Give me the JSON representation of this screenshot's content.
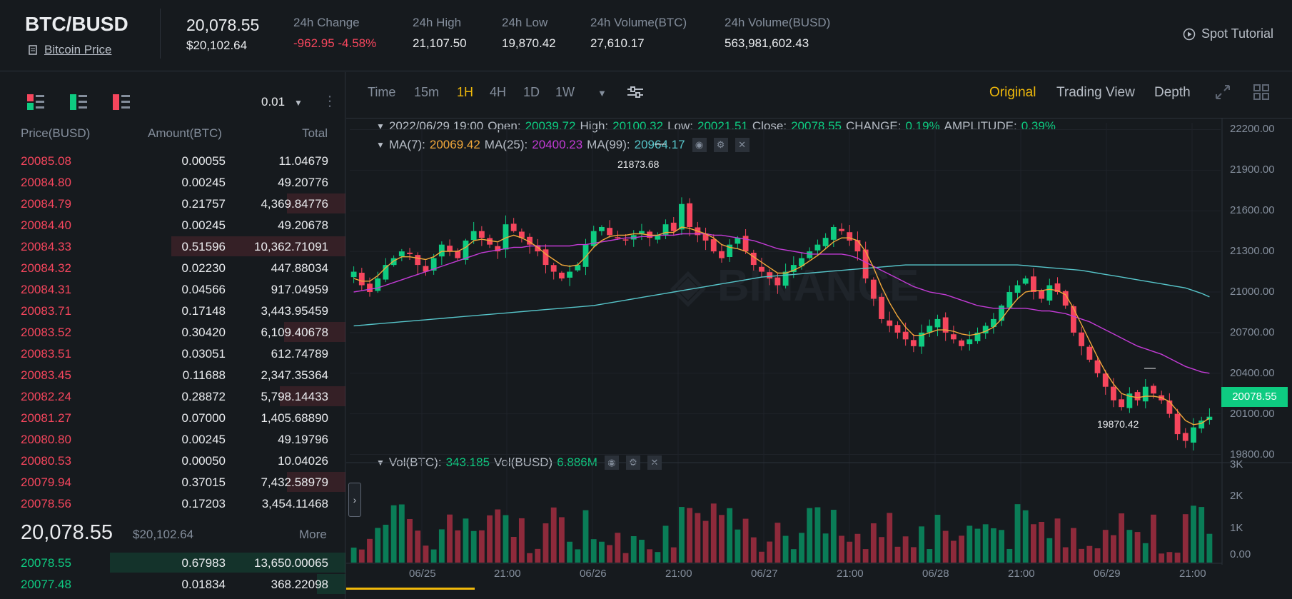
{
  "header": {
    "pair": "BTC/BUSD",
    "coin_link": "Bitcoin Price",
    "last_price": "20,078.55",
    "last_price_usd": "$20,102.64",
    "stats": [
      {
        "label": "24h Change",
        "value": "-962.95 -4.58%",
        "color": "#f6465d"
      },
      {
        "label": "24h High",
        "value": "21,107.50"
      },
      {
        "label": "24h Low",
        "value": "19,870.42"
      },
      {
        "label": "24h Volume(BTC)",
        "value": "27,610.17"
      },
      {
        "label": "24h Volume(BUSD)",
        "value": "563,981,602.43"
      }
    ],
    "tutorial": "Spot Tutorial"
  },
  "orderbook": {
    "tick_size": "0.01",
    "headers": {
      "price": "Price(BUSD)",
      "amount": "Amount(BTC)",
      "total": "Total"
    },
    "asks": [
      {
        "price": "20085.08",
        "amount": "0.00055",
        "total": "11.04679",
        "depth": 0
      },
      {
        "price": "20084.80",
        "amount": "0.00245",
        "total": "49.20776",
        "depth": 0
      },
      {
        "price": "20084.79",
        "amount": "0.21757",
        "total": "4,369.84776",
        "depth": 0.25
      },
      {
        "price": "20084.40",
        "amount": "0.00245",
        "total": "49.20678",
        "depth": 0
      },
      {
        "price": "20084.33",
        "amount": "0.51596",
        "total": "10,362.71091",
        "depth": 0.74
      },
      {
        "price": "20084.32",
        "amount": "0.02230",
        "total": "447.88034",
        "depth": 0
      },
      {
        "price": "20084.31",
        "amount": "0.04566",
        "total": "917.04959",
        "depth": 0
      },
      {
        "price": "20083.71",
        "amount": "0.17148",
        "total": "3,443.95459",
        "depth": 0
      },
      {
        "price": "20083.52",
        "amount": "0.30420",
        "total": "6,109.40678",
        "depth": 0.26
      },
      {
        "price": "20083.51",
        "amount": "0.03051",
        "total": "612.74789",
        "depth": 0
      },
      {
        "price": "20083.45",
        "amount": "0.11688",
        "total": "2,347.35364",
        "depth": 0
      },
      {
        "price": "20082.24",
        "amount": "0.28872",
        "total": "5,798.14433",
        "depth": 0.28
      },
      {
        "price": "20081.27",
        "amount": "0.07000",
        "total": "1,405.68890",
        "depth": 0
      },
      {
        "price": "20080.80",
        "amount": "0.00245",
        "total": "49.19796",
        "depth": 0
      },
      {
        "price": "20080.53",
        "amount": "0.00050",
        "total": "10.04026",
        "depth": 0
      },
      {
        "price": "20079.94",
        "amount": "0.37015",
        "total": "7,432.58979",
        "depth": 0.25
      },
      {
        "price": "20078.56",
        "amount": "0.17203",
        "total": "3,454.11468",
        "depth": 0
      }
    ],
    "mid_price": "20,078.55",
    "mid_price_usd": "$20,102.64",
    "more": "More",
    "bids": [
      {
        "price": "20078.55",
        "amount": "0.67983",
        "total": "13,650.00065",
        "depth": 1
      },
      {
        "price": "20077.48",
        "amount": "0.01834",
        "total": "368.22098",
        "depth": 0.12
      }
    ]
  },
  "chart_toolbar": {
    "timeframes": [
      "Time",
      "15m",
      "1H",
      "4H",
      "1D",
      "1W"
    ],
    "active_timeframe": "1H",
    "views": [
      "Original",
      "Trading View",
      "Depth"
    ],
    "active_view": "Original"
  },
  "ohlc_info": {
    "date": "2022/06/29 19:00",
    "open_label": "Open:",
    "open": "20039.72",
    "high_label": "High:",
    "high": "20100.32",
    "low_label": "Low:",
    "low": "20021.51",
    "close_label": "Close:",
    "close": "20078.55",
    "change_label": "CHANGE:",
    "change": "0.19%",
    "amp_label": "AMPLITUDE:",
    "amp": "0.39%"
  },
  "ma_info": {
    "ma7_label": "MA(7):",
    "ma7": "20069.42",
    "ma25_label": "MA(25):",
    "ma25": "20400.23",
    "ma99_label": "MA(99):",
    "ma99": "20964.17"
  },
  "vol_info": {
    "vol_btc_label": "Vol(BTC):",
    "vol_btc": "343.185",
    "vol_busd_label": "Vol(BUSD)",
    "vol_busd": "6.886M"
  },
  "current_price_tag": "20078.55",
  "high_marker": "21873.68",
  "low_marker": "19870.42",
  "colors": {
    "up": "#0ecb81",
    "down": "#f6465d",
    "accent": "#f0b90b",
    "ma7": "#f0a73a",
    "ma25": "#c33bd6",
    "ma99": "#56c4c9"
  },
  "chart_data": {
    "type": "candlestick",
    "y_ticks": [
      "22200.00",
      "21900.00",
      "21600.00",
      "21300.00",
      "21000.00",
      "20700.00",
      "20400.00",
      "20100.00",
      "19800.00"
    ],
    "ylim": [
      19750,
      22250
    ],
    "x_ticks": [
      "06/25",
      "21:00",
      "06/26",
      "21:00",
      "06/27",
      "21:00",
      "06/28",
      "21:00",
      "06/29",
      "21:00"
    ],
    "vol_ticks": [
      "3K",
      "2K",
      "1K",
      "0.00"
    ],
    "close_series": [
      21150,
      21050,
      21000,
      21100,
      21200,
      21250,
      21300,
      21280,
      21200,
      21150,
      21250,
      21350,
      21300,
      21250,
      21380,
      21450,
      21400,
      21350,
      21300,
      21500,
      21450,
      21400,
      21350,
      21300,
      21200,
      21150,
      21100,
      21150,
      21200,
      21350,
      21450,
      21480,
      21420,
      21400,
      21380,
      21420,
      21450,
      21400,
      21420,
      21500,
      21450,
      21650,
      21480,
      21420,
      21380,
      21300,
      21250,
      21350,
      21400,
      21300,
      21200,
      21150,
      21100,
      21050,
      21150,
      21200,
      21250,
      21300,
      21350,
      21400,
      21480,
      21450,
      21380,
      21300,
      21100,
      20950,
      20800,
      20750,
      20700,
      20650,
      20600,
      20700,
      20750,
      20800,
      20700,
      20650,
      20600,
      20650,
      20700,
      20750,
      20800,
      20900,
      21000,
      21050,
      21100,
      21000,
      20950,
      21050,
      21000,
      20900,
      20700,
      20600,
      20500,
      20400,
      20300,
      20200,
      20150,
      20250,
      20200,
      20300,
      20250,
      20200,
      20100,
      19950,
      19900,
      20000,
      20050,
      20078.55
    ],
    "ma7_series": [
      21100,
      21080,
      21080,
      21120,
      21180,
      21230,
      21260,
      21260,
      21250,
      21240,
      21260,
      21300,
      21300,
      21300,
      21330,
      21380,
      21390,
      21380,
      21370,
      21400,
      21420,
      21400,
      21370,
      21330,
      21280,
      21240,
      21200,
      21190,
      21200,
      21260,
      21330,
      21380,
      21410,
      21420,
      21420,
      21430,
      21430,
      21420,
      21420,
      21440,
      21440,
      21480,
      21470,
      21450,
      21430,
      21400,
      21350,
      21330,
      21320,
      21300,
      21260,
      21220,
      21180,
      21140,
      21140,
      21160,
      21190,
      21230,
      21270,
      21320,
      21370,
      21400,
      21400,
      21380,
      21300,
      21180,
      21040,
      20920,
      20820,
      20740,
      20680,
      20680,
      20700,
      20720,
      20720,
      20710,
      20690,
      20680,
      20690,
      20710,
      20740,
      20800,
      20880,
      20950,
      21000,
      21010,
      21010,
      21020,
      21010,
      20980,
      20880,
      20760,
      20640,
      20520,
      20410,
      20320,
      20250,
      20230,
      20220,
      20230,
      20230,
      20220,
      20190,
      20120,
      20050,
      20020,
      20030,
      20069
    ],
    "ma25_series": [
      21000,
      21010,
      21020,
      21030,
      21050,
      21070,
      21090,
      21110,
      21130,
      21150,
      21170,
      21190,
      21210,
      21230,
      21250,
      21270,
      21290,
      21300,
      21310,
      21320,
      21330,
      21330,
      21340,
      21340,
      21340,
      21340,
      21340,
      21340,
      21350,
      21350,
      21360,
      21370,
      21380,
      21390,
      21400,
      21400,
      21410,
      21410,
      21420,
      21420,
      21420,
      21430,
      21430,
      21430,
      21430,
      21420,
      21420,
      21410,
      21400,
      21390,
      21380,
      21360,
      21340,
      21320,
      21310,
      21300,
      21290,
      21280,
      21280,
      21280,
      21280,
      21280,
      21270,
      21250,
      21220,
      21190,
      21160,
      21130,
      21100,
      21070,
      21040,
      21020,
      21000,
      20990,
      20980,
      20960,
      20940,
      20920,
      20900,
      20890,
      20880,
      20880,
      20880,
      20880,
      20880,
      20870,
      20860,
      20860,
      20850,
      20840,
      20820,
      20800,
      20780,
      20750,
      20720,
      20690,
      20660,
      20630,
      20600,
      20580,
      20560,
      20540,
      20510,
      20480,
      20450,
      20430,
      20410,
      20400
    ],
    "ma99_series": [
      20750,
      20755,
      20760,
      20765,
      20770,
      20775,
      20780,
      20785,
      20790,
      20795,
      20800,
      20805,
      20810,
      20815,
      20820,
      20825,
      20830,
      20835,
      20840,
      20845,
      20850,
      20855,
      20860,
      20865,
      20870,
      20875,
      20880,
      20885,
      20890,
      20895,
      20900,
      20910,
      20920,
      20930,
      20940,
      20950,
      20960,
      20970,
      20980,
      20990,
      21000,
      21010,
      21020,
      21030,
      21040,
      21050,
      21060,
      21070,
      21080,
      21090,
      21100,
      21110,
      21115,
      21120,
      21125,
      21130,
      21135,
      21140,
      21145,
      21150,
      21155,
      21160,
      21165,
      21170,
      21175,
      21180,
      21185,
      21190,
      21195,
      21200,
      21200,
      21200,
      21200,
      21200,
      21200,
      21200,
      21200,
      21200,
      21200,
      21200,
      21200,
      21200,
      21200,
      21200,
      21195,
      21190,
      21185,
      21180,
      21175,
      21170,
      21165,
      21160,
      21150,
      21140,
      21130,
      21120,
      21110,
      21100,
      21090,
      21080,
      21070,
      21060,
      21050,
      21040,
      21030,
      21010,
      20990,
      20964
    ]
  }
}
